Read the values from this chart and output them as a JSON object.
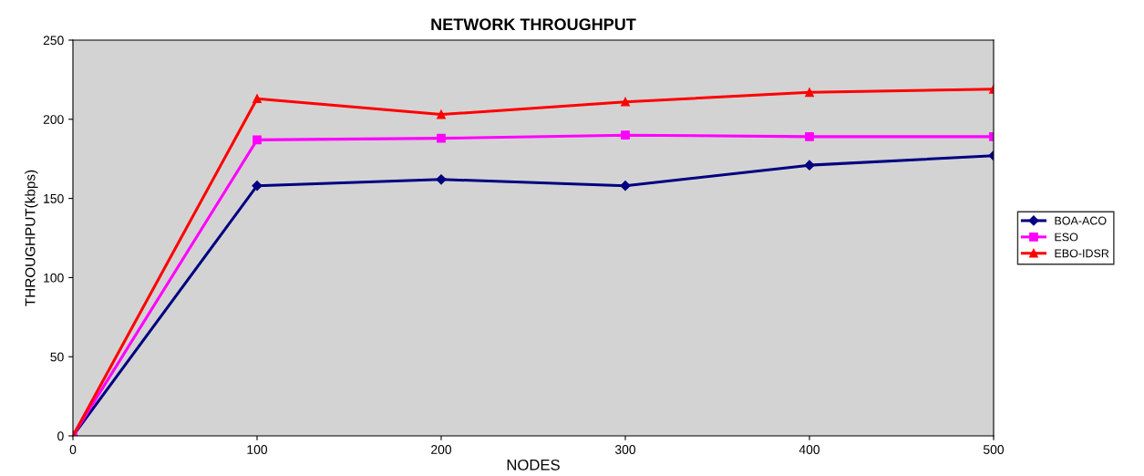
{
  "chart_data": {
    "type": "line",
    "title": "NETWORK THROUGHPUT",
    "xlabel": "NODES",
    "ylabel": "THROUGHPUT(kbps)",
    "x": [
      0,
      100,
      200,
      300,
      400,
      500
    ],
    "series": [
      {
        "name": "BOA-ACO",
        "color": "#000080",
        "marker": "diamond",
        "values": [
          0,
          158,
          162,
          158,
          171,
          177
        ]
      },
      {
        "name": "ESO",
        "color": "#ff00ff",
        "marker": "square",
        "values": [
          0,
          187,
          188,
          190,
          189,
          189
        ]
      },
      {
        "name": "EBO-IDSR",
        "color": "#ff0000",
        "marker": "triangle",
        "values": [
          0,
          213,
          203,
          211,
          217,
          219
        ]
      }
    ],
    "xlim": [
      0,
      500
    ],
    "xticks": [
      0,
      100,
      200,
      300,
      400,
      500
    ],
    "ylim": [
      0,
      250
    ],
    "yticks": [
      0,
      50,
      100,
      150,
      200,
      250
    ],
    "grid": false,
    "legend": "right"
  }
}
